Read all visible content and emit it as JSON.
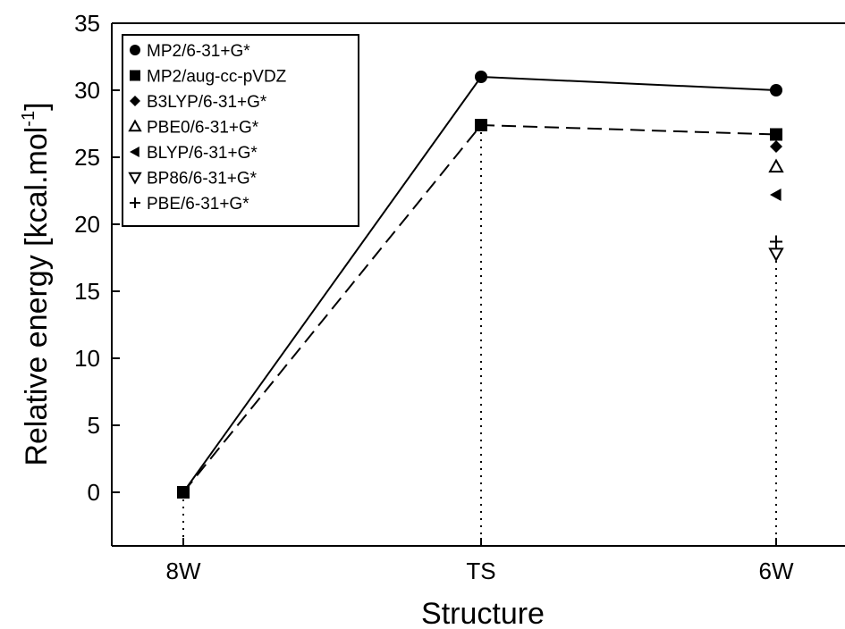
{
  "chart_data": {
    "type": "line",
    "title": "",
    "xlabel": "Structure",
    "ylabel": "Relative energy [kcal.mol",
    "ylabel_superscript": "-1",
    "ylabel_suffix": "]",
    "categories": [
      "8W",
      "TS",
      "6W"
    ],
    "ylim": [
      -4,
      35
    ],
    "yticks": [
      0,
      5,
      10,
      15,
      20,
      25,
      30,
      35
    ],
    "grid": false,
    "legend_position": "top-left",
    "series": [
      {
        "name": "MP2/6-31+G*",
        "marker": "circle",
        "line": "solid",
        "values": [
          0,
          31.0,
          30.0
        ]
      },
      {
        "name": "MP2/aug-cc-pVDZ",
        "marker": "square",
        "line": "dashed",
        "values": [
          0,
          27.4,
          26.7
        ]
      },
      {
        "name": "B3LYP/6-31+G*",
        "marker": "diamond",
        "line": "none",
        "values": [
          null,
          null,
          25.8
        ]
      },
      {
        "name": "PBE0/6-31+G*",
        "marker": "triangle-up-open",
        "line": "none",
        "values": [
          null,
          null,
          24.3
        ]
      },
      {
        "name": "BLYP/6-31+G*",
        "marker": "triangle-left",
        "line": "none",
        "values": [
          null,
          null,
          22.2
        ]
      },
      {
        "name": "BP86/6-31+G*",
        "marker": "triangle-down-open",
        "line": "none",
        "values": [
          null,
          null,
          17.8
        ]
      },
      {
        "name": "PBE/6-31+G*",
        "marker": "plus",
        "line": "none",
        "values": [
          null,
          null,
          18.7
        ]
      }
    ],
    "colors": {
      "line": "#000000",
      "background": "#ffffff"
    }
  }
}
